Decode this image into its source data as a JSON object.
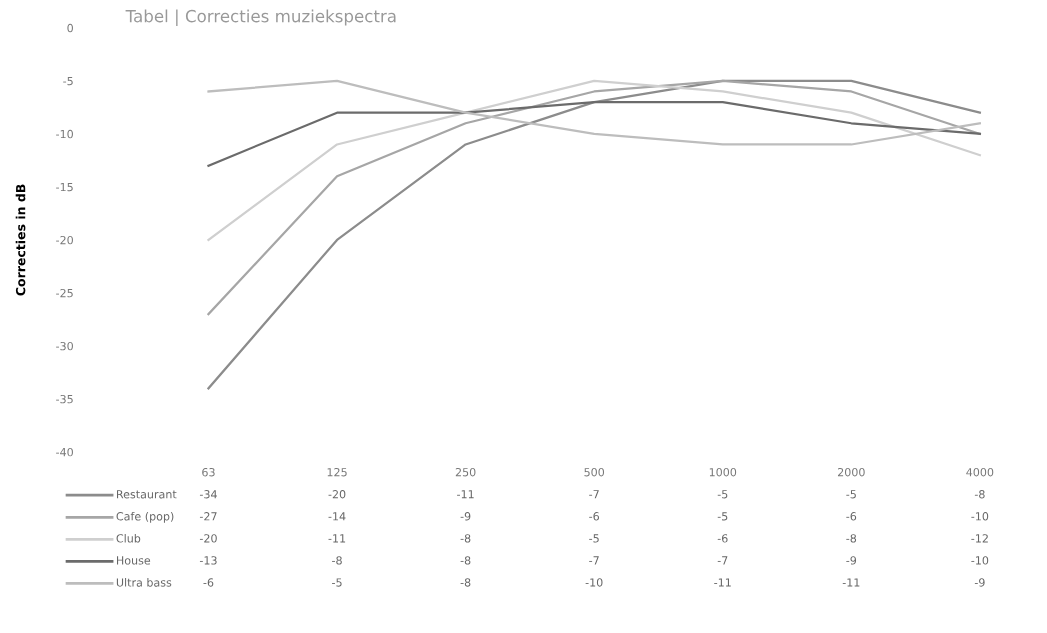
{
  "chart_data": {
    "type": "line",
    "title": "Tabel | Correcties muziekspectra",
    "ylabel": "Correcties in dB",
    "categories": [
      "63",
      "125",
      "250",
      "500",
      "1000",
      "2000",
      "4000"
    ],
    "ylim": [
      -40,
      0
    ],
    "yticks": [
      -40,
      -35,
      -30,
      -25,
      -20,
      -15,
      -10,
      -5,
      0
    ],
    "grid": false,
    "legend": "bottom",
    "data_labels": true,
    "marker": "none",
    "line_style": "solid",
    "series": [
      {
        "name": "Restaurant",
        "color": "#8c8c8c",
        "values": [
          -34,
          -20,
          -11,
          -7,
          -5,
          -5,
          -8
        ]
      },
      {
        "name": "Cafe (pop)",
        "color": "#a6a6a6",
        "values": [
          -27,
          -14,
          -9,
          -6,
          -5,
          -6,
          -10
        ]
      },
      {
        "name": "Club",
        "color": "#cfcfcf",
        "values": [
          -20,
          -11,
          -8,
          -5,
          -6,
          -8,
          -12
        ]
      },
      {
        "name": "House",
        "color": "#6b6b6b",
        "values": [
          -13,
          -8,
          -8,
          -7,
          -7,
          -9,
          -10
        ]
      },
      {
        "name": "Ultra bass",
        "color": "#bdbdbd",
        "values": [
          -6,
          -5,
          -8,
          -10,
          -11,
          -11,
          -9
        ]
      }
    ]
  }
}
